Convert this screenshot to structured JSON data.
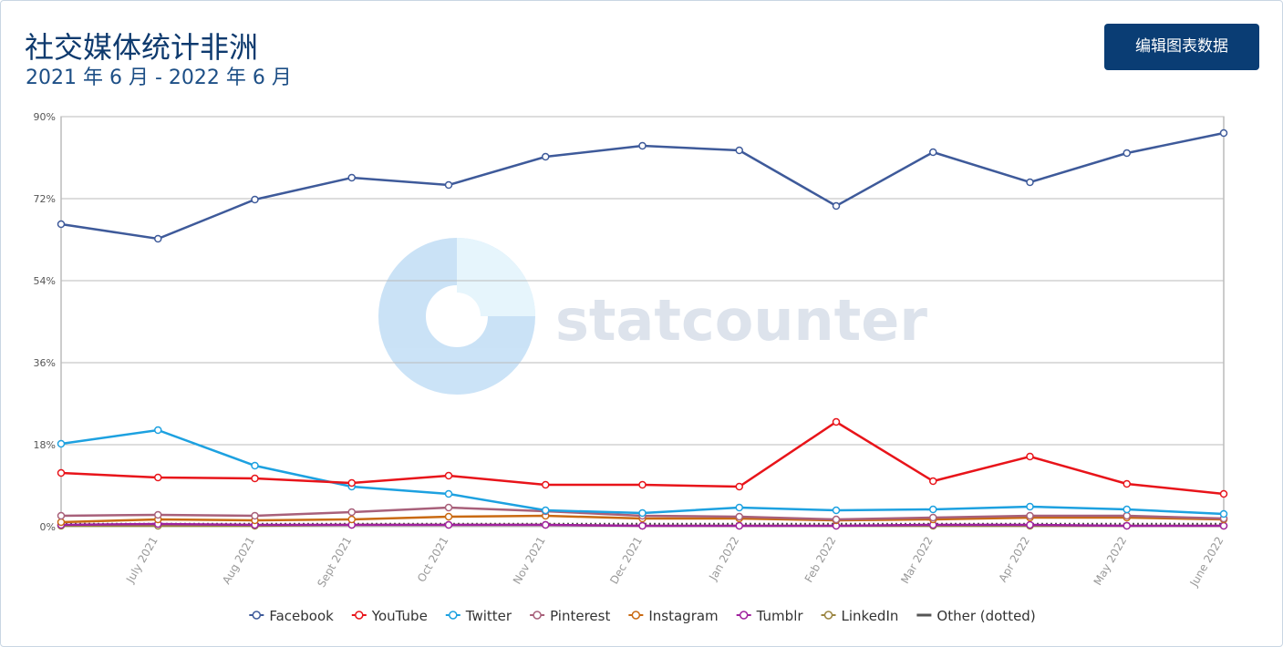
{
  "header": {
    "title": "社交媒体统计非洲",
    "subtitle": "2021 年 6 月 - 2022 年 6 月",
    "button": "编辑图表数据"
  },
  "chart_data": {
    "type": "line",
    "watermark": "statcounter",
    "categories": [
      null,
      "July 2021",
      "Aug 2021",
      "Sept 2021",
      "Oct 2021",
      "Nov 2021",
      "Dec 2021",
      "Jan 2022",
      "Feb 2022",
      "Mar 2022",
      "Apr 2022",
      "May 2022",
      "June 2022"
    ],
    "series": [
      {
        "name": "Facebook",
        "color": "#3e5a9a",
        "values": [
          66.4,
          63.2,
          71.8,
          76.6,
          75,
          81.2,
          83.6,
          82.6,
          70.4,
          82.2,
          75.6,
          82,
          86.4
        ]
      },
      {
        "name": "YouTube",
        "color": "#e8141a",
        "values": [
          11.8,
          10.8,
          10.6,
          9.6,
          11.2,
          9.2,
          9.2,
          8.8,
          23,
          10,
          15.4,
          9.4,
          7.2
        ]
      },
      {
        "name": "Twitter",
        "color": "#1da1e0",
        "values": [
          18.2,
          21.2,
          13.4,
          8.8,
          7.2,
          3.6,
          3,
          4.2,
          3.6,
          3.8,
          4.4,
          3.8,
          2.8
        ]
      },
      {
        "name": "Pinterest",
        "color": "#a8607a",
        "values": [
          2.4,
          2.6,
          2.4,
          3.2,
          4.2,
          3.4,
          2.4,
          2.2,
          1.6,
          2,
          2.4,
          2.4,
          1.8
        ]
      },
      {
        "name": "Instagram",
        "color": "#c96a12",
        "values": [
          1,
          1.6,
          1.4,
          1.6,
          2.2,
          2.4,
          1.8,
          1.8,
          1.4,
          1.6,
          2,
          2,
          1.6
        ]
      },
      {
        "name": "Tumblr",
        "color": "#a0229e",
        "values": [
          0.4,
          0.6,
          0.4,
          0.4,
          0.4,
          0.4,
          0.2,
          0.2,
          0.2,
          0.4,
          0.4,
          0.2,
          0.2
        ]
      },
      {
        "name": "LinkedIn",
        "color": "#9a8440",
        "values": [
          0.2,
          0.2,
          0.2,
          0.4,
          0.4,
          0.4,
          0.2,
          0.2,
          0.2,
          0.2,
          0.2,
          0.2,
          0.2
        ]
      },
      {
        "name": "Other (dotted)",
        "color": "#555555",
        "dotted": true,
        "values": [
          0.6,
          0.6,
          0.6,
          0.6,
          0.6,
          0.6,
          0.6,
          0.6,
          0.6,
          0.6,
          0.6,
          0.6,
          0.6
        ]
      }
    ],
    "ylim": [
      0,
      90
    ],
    "yticks": [
      {
        "value": 0,
        "label": "0%"
      },
      {
        "value": 18,
        "label": "18%"
      },
      {
        "value": 36,
        "label": "36%"
      },
      {
        "value": 54,
        "label": "54%"
      },
      {
        "value": 72,
        "label": "72%"
      },
      {
        "value": 90,
        "label": "90%"
      }
    ],
    "grid": true
  }
}
